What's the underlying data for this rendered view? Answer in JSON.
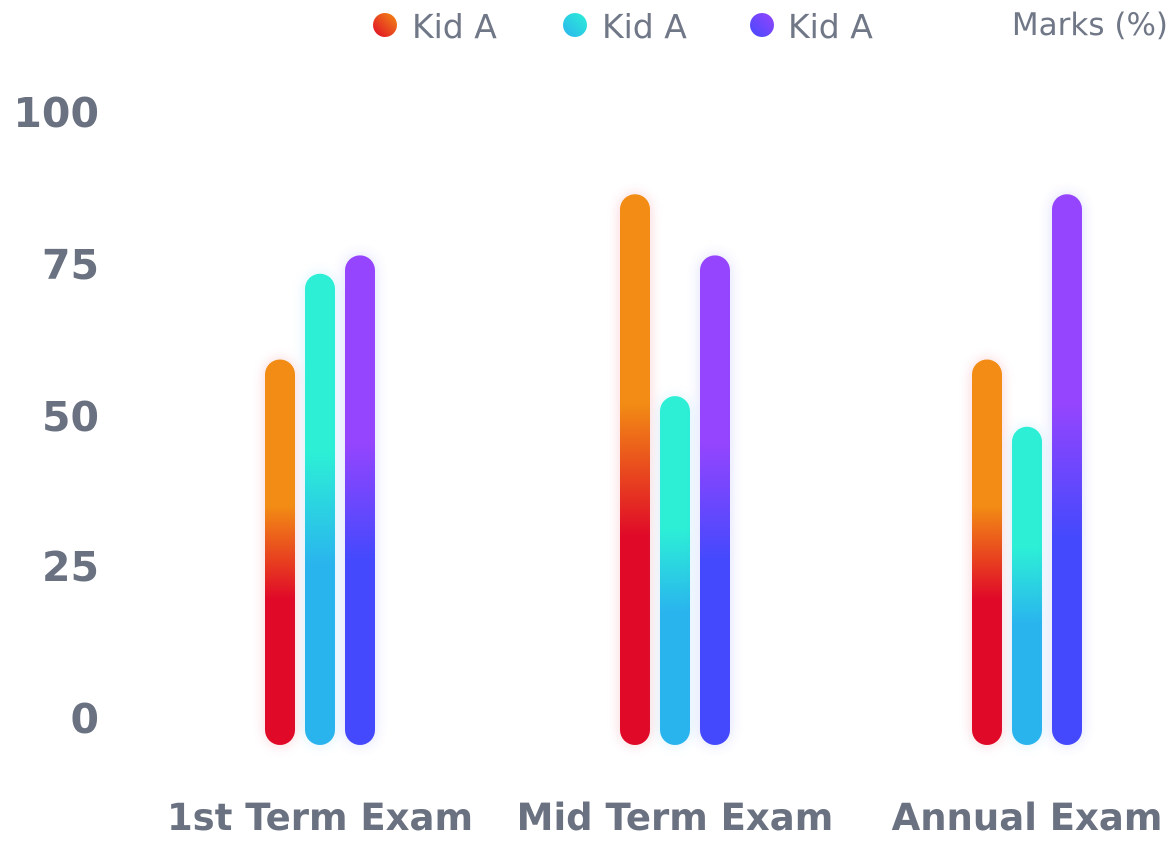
{
  "chart_data": {
    "type": "bar",
    "title": "",
    "xlabel": "",
    "ylabel": "Marks (%)",
    "ylim": [
      0,
      100
    ],
    "yticks": [
      "100",
      "75",
      "50",
      "25",
      "0"
    ],
    "categories": [
      "1st Term Exam",
      "Mid Term Exam",
      "Annual Exam"
    ],
    "series": [
      {
        "name": "Kid A",
        "values": [
          63,
          90,
          63
        ],
        "color_top": "#f28c14",
        "color_bottom": "#e00a28"
      },
      {
        "name": "Kid A",
        "values": [
          77,
          57,
          52
        ],
        "color_top": "#2cefd6",
        "color_bottom": "#2ab4ee"
      },
      {
        "name": "Kid A",
        "values": [
          80,
          80,
          90
        ],
        "color_top": "#9545fd",
        "color_bottom": "#4549fd"
      }
    ],
    "grid": false,
    "legend_position": "top"
  }
}
